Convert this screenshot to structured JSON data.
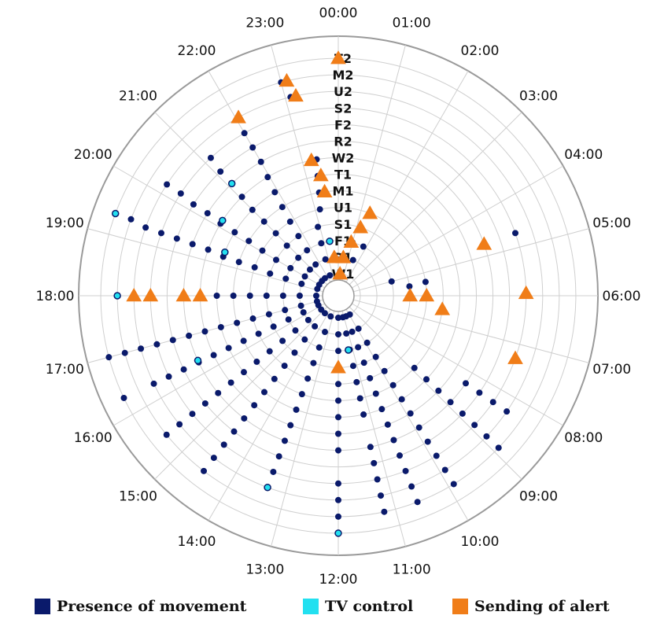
{
  "chart_data": {
    "type": "scatter",
    "subtype": "polar-clock",
    "hour_labels": [
      "00:00",
      "01:00",
      "02:00",
      "03:00",
      "04:00",
      "05:00",
      "06:00",
      "07:00",
      "08:00",
      "09:00",
      "10:00",
      "11:00",
      "12:00",
      "13:00",
      "14:00",
      "15:00",
      "16:00",
      "17:00",
      "18:00",
      "19:00",
      "20:00",
      "21:00",
      "22:00",
      "23:00"
    ],
    "ring_labels": [
      "W1",
      "R1",
      "F1",
      "S1",
      "U1",
      "M1",
      "T1",
      "W2",
      "R2",
      "F2",
      "S2",
      "U2",
      "M2",
      "T2"
    ],
    "grid": true,
    "legend_position": "bottom",
    "series": [
      {
        "name": "Presence of movement",
        "color": "#0a1a6b",
        "marker": "circle",
        "points": [
          [
            "W1",
            22.5
          ],
          [
            "R1",
            22.7
          ],
          [
            "F1",
            22.8
          ],
          [
            "S1",
            22.9
          ],
          [
            "U1",
            23.2
          ],
          [
            "M1",
            23.3
          ],
          [
            "T1",
            23.35
          ],
          [
            "W2",
            23.4
          ],
          [
            "T2",
            0
          ],
          [
            "U2",
            23.1
          ],
          [
            "M2",
            23.0
          ],
          [
            "W1",
            0.4
          ],
          [
            "R1",
            0.6
          ],
          [
            "F1",
            1.0
          ],
          [
            "W1",
            21.5
          ],
          [
            "R1",
            21.6
          ],
          [
            "F1",
            21.7
          ],
          [
            "S1",
            21.75
          ],
          [
            "U1",
            21.8
          ],
          [
            "M1",
            21.85
          ],
          [
            "T1",
            21.9
          ],
          [
            "W2",
            21.95
          ],
          [
            "R2",
            22.0
          ],
          [
            "F2",
            22.0
          ],
          [
            "S2",
            22.0
          ],
          [
            "U2",
            22.05
          ],
          [
            "W1",
            20.8
          ],
          [
            "R1",
            20.85
          ],
          [
            "F1",
            20.9
          ],
          [
            "S1",
            20.95
          ],
          [
            "U1",
            21.0
          ],
          [
            "M1",
            21.0
          ],
          [
            "T1",
            21.0
          ],
          [
            "W2",
            21.05
          ],
          [
            "R2",
            21.1
          ],
          [
            "F2",
            21.1
          ],
          [
            "S2",
            21.15
          ],
          [
            "W1",
            20.0
          ],
          [
            "R1",
            20.0
          ],
          [
            "F1",
            20.0
          ],
          [
            "S1",
            20.0
          ],
          [
            "U1",
            20.05
          ],
          [
            "M1",
            20.1
          ],
          [
            "T1",
            20.1
          ],
          [
            "W2",
            20.1
          ],
          [
            "R2",
            20.15
          ],
          [
            "F2",
            20.15
          ],
          [
            "S2",
            20.2
          ],
          [
            "U2",
            20.2
          ],
          [
            "W1",
            19.2
          ],
          [
            "R1",
            19.2
          ],
          [
            "F1",
            19.2
          ],
          [
            "S1",
            19.2
          ],
          [
            "U1",
            19.25
          ],
          [
            "M1",
            19.25
          ],
          [
            "T1",
            19.25
          ],
          [
            "W2",
            19.3
          ],
          [
            "R2",
            19.3
          ],
          [
            "F2",
            19.3
          ],
          [
            "S2",
            19.3
          ],
          [
            "U2",
            19.3
          ],
          [
            "M2",
            19.35
          ],
          [
            "W1",
            18.0
          ],
          [
            "R1",
            18.0
          ],
          [
            "F1",
            18.0
          ],
          [
            "S1",
            18.0
          ],
          [
            "U1",
            18.0
          ],
          [
            "M1",
            18.0
          ],
          [
            "T1",
            18.0
          ],
          [
            "M2",
            18.0
          ],
          [
            "W1",
            17.0
          ],
          [
            "R1",
            17.0
          ],
          [
            "F1",
            17.0
          ],
          [
            "S1",
            17.0
          ],
          [
            "U1",
            17.0
          ],
          [
            "M1",
            17.0
          ],
          [
            "T1",
            17.0
          ],
          [
            "W2",
            17.0
          ],
          [
            "R2",
            17.0
          ],
          [
            "F2",
            17.0
          ],
          [
            "S2",
            17.0
          ],
          [
            "U2",
            17.0
          ],
          [
            "M2",
            17.0
          ],
          [
            "T2",
            17.0
          ],
          [
            "W1",
            16.3
          ],
          [
            "R1",
            16.3
          ],
          [
            "F1",
            16.3
          ],
          [
            "S1",
            16.3
          ],
          [
            "U1",
            16.3
          ],
          [
            "M1",
            16.3
          ],
          [
            "T1",
            16.3
          ],
          [
            "W2",
            16.3
          ],
          [
            "R2",
            16.3
          ],
          [
            "F2",
            16.3
          ],
          [
            "S2",
            16.3
          ],
          [
            "U2",
            16.3
          ],
          [
            "T2",
            16.3
          ],
          [
            "W1",
            15.4
          ],
          [
            "R1",
            15.4
          ],
          [
            "F1",
            15.4
          ],
          [
            "S1",
            15.4
          ],
          [
            "U1",
            15.4
          ],
          [
            "M1",
            15.4
          ],
          [
            "T1",
            15.4
          ],
          [
            "W2",
            15.4
          ],
          [
            "R2",
            15.4
          ],
          [
            "F2",
            15.4
          ],
          [
            "S2",
            15.4
          ],
          [
            "U2",
            15.4
          ],
          [
            "M2",
            15.4
          ],
          [
            "W1",
            14.5
          ],
          [
            "R1",
            14.5
          ],
          [
            "F1",
            14.5
          ],
          [
            "S1",
            14.5
          ],
          [
            "U1",
            14.5
          ],
          [
            "M1",
            14.5
          ],
          [
            "T1",
            14.5
          ],
          [
            "W2",
            14.5
          ],
          [
            "R2",
            14.5
          ],
          [
            "F2",
            14.5
          ],
          [
            "S2",
            14.5
          ],
          [
            "U2",
            14.5
          ],
          [
            "M2",
            14.5
          ],
          [
            "W1",
            13.35
          ],
          [
            "R1",
            13.35
          ],
          [
            "F1",
            13.35
          ],
          [
            "S1",
            13.35
          ],
          [
            "U1",
            13.35
          ],
          [
            "M1",
            13.35
          ],
          [
            "T1",
            13.35
          ],
          [
            "W2",
            13.35
          ],
          [
            "R2",
            13.35
          ],
          [
            "F2",
            13.35
          ],
          [
            "S2",
            13.35
          ],
          [
            "U2",
            13.35
          ],
          [
            "W1",
            12.0
          ],
          [
            "R1",
            12.0
          ],
          [
            "F1",
            12.0
          ],
          [
            "S1",
            12.0
          ],
          [
            "U1",
            12.0
          ],
          [
            "M1",
            12.0
          ],
          [
            "T1",
            12.0
          ],
          [
            "W2",
            12.0
          ],
          [
            "R2",
            12.0
          ],
          [
            "S2",
            12.0
          ],
          [
            "U2",
            12.0
          ],
          [
            "M2",
            12.0
          ],
          [
            "W1",
            11.2
          ],
          [
            "R1",
            11.2
          ],
          [
            "F1",
            11.2
          ],
          [
            "S1",
            11.2
          ],
          [
            "U1",
            11.2
          ],
          [
            "M1",
            11.2
          ],
          [
            "T1",
            11.2
          ],
          [
            "R2",
            11.2
          ],
          [
            "F2",
            11.2
          ],
          [
            "S2",
            11.2
          ],
          [
            "U2",
            11.2
          ],
          [
            "M2",
            11.2
          ],
          [
            "W1",
            10.6
          ],
          [
            "R1",
            10.6
          ],
          [
            "F1",
            10.6
          ],
          [
            "S1",
            10.6
          ],
          [
            "U1",
            10.6
          ],
          [
            "M1",
            10.6
          ],
          [
            "T1",
            10.6
          ],
          [
            "W2",
            10.6
          ],
          [
            "R2",
            10.6
          ],
          [
            "F2",
            10.6
          ],
          [
            "S2",
            10.6
          ],
          [
            "U2",
            10.6
          ],
          [
            "M2",
            10.6
          ],
          [
            "W1",
            9.9
          ],
          [
            "R1",
            9.9
          ],
          [
            "F1",
            9.9
          ],
          [
            "S1",
            9.9
          ],
          [
            "U1",
            9.9
          ],
          [
            "M1",
            9.9
          ],
          [
            "T1",
            9.9
          ],
          [
            "W2",
            9.9
          ],
          [
            "R2",
            9.9
          ],
          [
            "F2",
            9.9
          ],
          [
            "S2",
            9.9
          ],
          [
            "U2",
            9.9
          ],
          [
            "M2",
            9.9
          ],
          [
            "M1",
            8.9
          ],
          [
            "T1",
            8.9
          ],
          [
            "W2",
            8.9
          ],
          [
            "R2",
            8.9
          ],
          [
            "F2",
            8.9
          ],
          [
            "S2",
            8.9
          ],
          [
            "U2",
            8.9
          ],
          [
            "M2",
            8.9
          ],
          [
            "R2",
            8.3
          ],
          [
            "F2",
            8.3
          ],
          [
            "S2",
            8.3
          ],
          [
            "U2",
            8.3
          ],
          [
            "S1",
            6.0
          ],
          [
            "U1",
            6.0
          ],
          [
            "S1",
            5.5
          ],
          [
            "U1",
            5.4
          ],
          [
            "F1",
            5.0
          ],
          [
            "R1",
            1.5
          ],
          [
            "F1",
            1.8
          ],
          [
            "S2",
            4.7
          ]
        ]
      },
      {
        "name": "TV control",
        "color": "#22e0f0",
        "marker": "circle",
        "points": [
          [
            "F1",
            23.4
          ],
          [
            "U2",
            22.05
          ],
          [
            "R2",
            21.1
          ],
          [
            "W2",
            20.2
          ],
          [
            "T2",
            19.35
          ],
          [
            "M2",
            18.0
          ],
          [
            "T1",
            19.4
          ],
          [
            "R2",
            16.35
          ],
          [
            "U2",
            13.35
          ],
          [
            "T2",
            12.0
          ],
          [
            "F1",
            11.3
          ]
        ]
      },
      {
        "name": "Sending of alert",
        "color": "#f07d18",
        "marker": "triangle",
        "points": [
          [
            "R1",
            23.6
          ],
          [
            "M1",
            23.5
          ],
          [
            "T1",
            23.45
          ],
          [
            "W2",
            23.25
          ],
          [
            "U2",
            23.2
          ],
          [
            "M2",
            23.1
          ],
          [
            "T2",
            0
          ],
          [
            "U2",
            22.05
          ],
          [
            "W1",
            0.3
          ],
          [
            "R1",
            0.5
          ],
          [
            "F1",
            0.9
          ],
          [
            "S1",
            1.2
          ],
          [
            "U1",
            1.4
          ],
          [
            "S1",
            6.0
          ],
          [
            "U1",
            6.0
          ],
          [
            "R2",
            4.7
          ],
          [
            "S2",
            5.95
          ],
          [
            "M1",
            6.5
          ],
          [
            "S2",
            7.3
          ],
          [
            "S2",
            18.0
          ],
          [
            "U2",
            18.0
          ],
          [
            "W2",
            18.0
          ],
          [
            "R2",
            18.0
          ],
          [
            "S1",
            12.0
          ]
        ]
      }
    ]
  }
}
